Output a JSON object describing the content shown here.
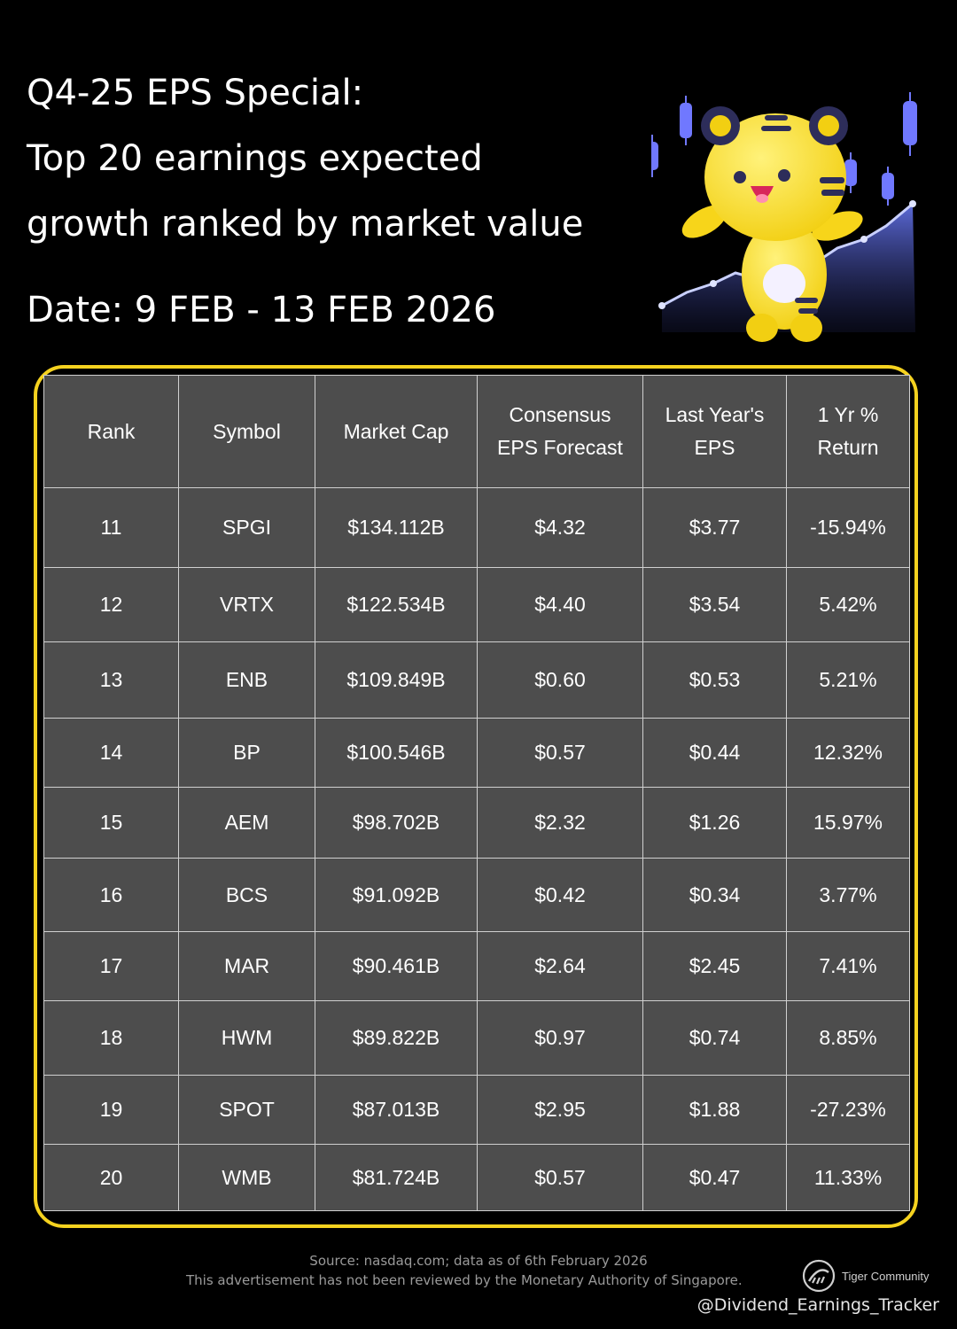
{
  "header": {
    "title_lines": [
      "Q4-25 EPS Special:",
      "Top 20 earnings expected",
      "growth ranked by market value"
    ],
    "date": "Date: 9 FEB - 13 FEB 2026"
  },
  "table": {
    "headers": {
      "rank": "Rank",
      "symbol": "Symbol",
      "market_cap": "Market Cap",
      "eps_forecast_line1": "Consensus",
      "eps_forecast_line2": "EPS Forecast",
      "last_eps_line1": "Last Year's",
      "last_eps_line2": "EPS",
      "return_line1": "1 Yr %",
      "return_line2": "Return"
    },
    "rows": [
      {
        "rank": "11",
        "symbol": "SPGI",
        "market_cap": "$134.112B",
        "eps_forecast": "$4.32",
        "last_eps": "$3.77",
        "return": "-15.94%"
      },
      {
        "rank": "12",
        "symbol": "VRTX",
        "market_cap": "$122.534B",
        "eps_forecast": "$4.40",
        "last_eps": "$3.54",
        "return": "5.42%"
      },
      {
        "rank": "13",
        "symbol": "ENB",
        "market_cap": "$109.849B",
        "eps_forecast": "$0.60",
        "last_eps": "$0.53",
        "return": "5.21%"
      },
      {
        "rank": "14",
        "symbol": "BP",
        "market_cap": "$100.546B",
        "eps_forecast": "$0.57",
        "last_eps": "$0.44",
        "return": "12.32%"
      },
      {
        "rank": "15",
        "symbol": "AEM",
        "market_cap": "$98.702B",
        "eps_forecast": "$2.32",
        "last_eps": "$1.26",
        "return": "15.97%"
      },
      {
        "rank": "16",
        "symbol": "BCS",
        "market_cap": "$91.092B",
        "eps_forecast": "$0.42",
        "last_eps": "$0.34",
        "return": "3.77%"
      },
      {
        "rank": "17",
        "symbol": "MAR",
        "market_cap": "$90.461B",
        "eps_forecast": "$2.64",
        "last_eps": "$2.45",
        "return": "7.41%"
      },
      {
        "rank": "18",
        "symbol": "HWM",
        "market_cap": "$89.822B",
        "eps_forecast": "$0.97",
        "last_eps": "$0.74",
        "return": "8.85%"
      },
      {
        "rank": "19",
        "symbol": "SPOT",
        "market_cap": "$87.013B",
        "eps_forecast": "$2.95",
        "last_eps": "$1.88",
        "return": "-27.23%"
      },
      {
        "rank": "20",
        "symbol": "WMB",
        "market_cap": "$81.724B",
        "eps_forecast": "$0.57",
        "last_eps": "$0.47",
        "return": "11.33%"
      }
    ]
  },
  "footer": {
    "source": "Source: nasdaq.com; data as of 6th February 2026",
    "disclaimer": "This advertisement has not been reviewed by the Monetary Authority of Singapore.",
    "brand": "Tiger Community",
    "handle": "@Dividend_Earnings_Tracker"
  },
  "colors": {
    "accent_border": "#f5d21f",
    "eps_forecast": "#ff8a1f",
    "return_positive": "#3ddc2f",
    "return_negative": "#f27c7c",
    "table_bg": "#4d4d4d"
  },
  "icons": {
    "mascot": "tiger-mascot-icon",
    "brand_logo": "tiger-community-logo-icon"
  }
}
